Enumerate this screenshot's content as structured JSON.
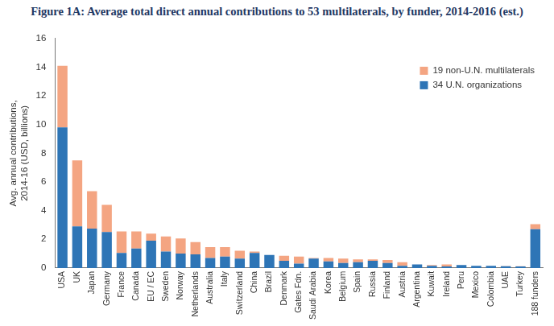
{
  "chart_data": {
    "type": "bar",
    "title": "Figure 1A: Average total direct annual contributions to 53 multilaterals, by funder, 2014-2016 (est.)",
    "y_label": "Avg. annual contributions, 2014-16 (USD, billions)",
    "categories": [
      "USA",
      "UK",
      "Japan",
      "Germany",
      "France",
      "Canada",
      "EU / EC",
      "Sweden",
      "Norway",
      "Netherlands",
      "Australia",
      "Italy",
      "Switzerland",
      "China",
      "Brazil",
      "Denmark",
      "Gates Fdn.",
      "Saudi Arabia",
      "Korea",
      "Belgium",
      "Spain",
      "Russia",
      "Finland",
      "Austria",
      "Argentina",
      "Kuwait",
      "Ireland",
      "Peru",
      "Mexico",
      "Colombia",
      "UAE",
      "Turkey",
      "188 funders"
    ],
    "series": [
      {
        "name": "34 U.N. organizations",
        "color": "#2e75b6",
        "values": [
          9.8,
          2.9,
          2.75,
          2.5,
          1.05,
          1.35,
          1.9,
          1.15,
          1.0,
          0.95,
          0.7,
          0.8,
          0.65,
          1.05,
          0.9,
          0.5,
          0.3,
          0.65,
          0.45,
          0.35,
          0.4,
          0.5,
          0.35,
          0.15,
          0.25,
          0.15,
          0.1,
          0.2,
          0.15,
          0.15,
          0.12,
          0.1,
          2.7
        ]
      },
      {
        "name": "19 non-U.N. multilaterals",
        "color": "#f4a582",
        "values": [
          4.3,
          4.6,
          2.6,
          1.9,
          1.5,
          1.2,
          0.5,
          1.05,
          1.05,
          0.85,
          0.75,
          0.65,
          0.55,
          0.1,
          0,
          0.35,
          0.5,
          0.05,
          0.25,
          0.3,
          0.2,
          0.1,
          0.2,
          0.25,
          0,
          0.05,
          0.15,
          0,
          0,
          0,
          0.02,
          0.02,
          0.35
        ]
      }
    ],
    "stacked": true,
    "ylim": [
      0,
      16
    ],
    "yticks": [
      0,
      2,
      4,
      6,
      8,
      10,
      12,
      14,
      16
    ],
    "grid": false,
    "legend": "upper right"
  }
}
